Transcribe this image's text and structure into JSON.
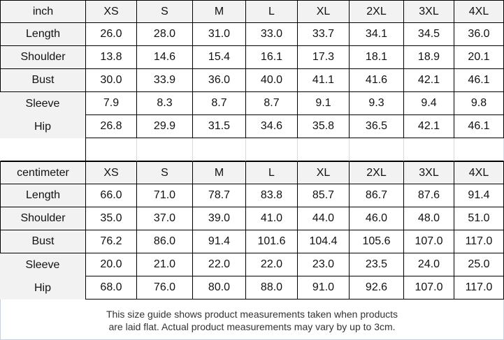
{
  "tables": [
    {
      "unit": "inch",
      "sizes": [
        "XS",
        "S",
        "M",
        "L",
        "XL",
        "2XL",
        "3XL",
        "4XL"
      ],
      "rows": [
        {
          "label": "Length",
          "values": [
            "26.0",
            "28.0",
            "31.0",
            "33.0",
            "33.7",
            "34.1",
            "34.5",
            "36.0"
          ]
        },
        {
          "label": "Shoulder",
          "values": [
            "13.8",
            "14.6",
            "15.4",
            "16.1",
            "17.3",
            "18.1",
            "18.9",
            "20.1"
          ]
        },
        {
          "label": "Bust",
          "values": [
            "30.0",
            "33.9",
            "36.0",
            "40.0",
            "41.1",
            "41.6",
            "42.1",
            "46.1"
          ]
        },
        {
          "label": "Sleeve",
          "values": [
            "7.9",
            "8.3",
            "8.7",
            "8.7",
            "9.1",
            "9.3",
            "9.4",
            "9.8"
          ]
        },
        {
          "label": "Hip",
          "values": [
            "26.8",
            "29.9",
            "31.5",
            "34.6",
            "35.8",
            "36.5",
            "42.1",
            "46.1"
          ]
        }
      ]
    },
    {
      "unit": "centimeter",
      "sizes": [
        "XS",
        "S",
        "M",
        "L",
        "XL",
        "2XL",
        "3XL",
        "4XL"
      ],
      "rows": [
        {
          "label": "Length",
          "values": [
            "66.0",
            "71.0",
            "78.7",
            "83.8",
            "85.7",
            "86.7",
            "87.6",
            "91.4"
          ]
        },
        {
          "label": "Shoulder",
          "values": [
            "35.0",
            "37.0",
            "39.0",
            "41.0",
            "44.0",
            "46.0",
            "48.0",
            "51.0"
          ]
        },
        {
          "label": "Bust",
          "values": [
            "76.2",
            "86.0",
            "91.4",
            "101.6",
            "104.4",
            "105.6",
            "107.0",
            "117.0"
          ]
        },
        {
          "label": "Sleeve",
          "values": [
            "20.0",
            "21.0",
            "22.0",
            "22.0",
            "23.0",
            "23.5",
            "24.0",
            "25.0"
          ]
        },
        {
          "label": "Hip",
          "values": [
            "68.0",
            "76.0",
            "80.0",
            "88.0",
            "91.0",
            "92.6",
            "107.0",
            "117.0"
          ]
        }
      ]
    }
  ],
  "footer": {
    "line1": "This size guide shows product measurements taken when products",
    "line2": "are laid flat. Actual product measurements may vary by up to 3cm."
  },
  "colors": {
    "header_bg": "#f2f2f2",
    "border": "#000000"
  }
}
